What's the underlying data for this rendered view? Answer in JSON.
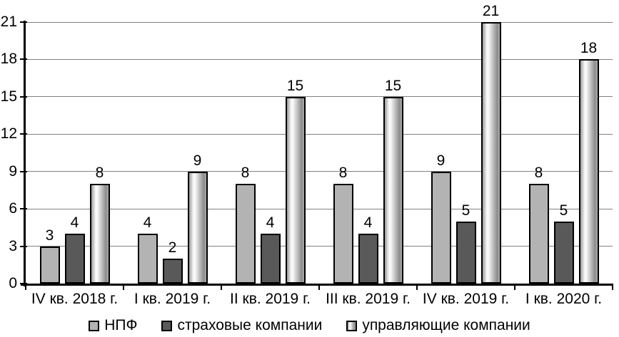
{
  "chart_data": {
    "type": "bar",
    "title": "",
    "categories": [
      "IV кв. 2018 г.",
      "I кв. 2019 г.",
      "II кв. 2019 г.",
      "III кв. 2019 г.",
      "IV кв. 2019 г.",
      "I кв. 2020 г."
    ],
    "series": [
      {
        "name": "НПФ",
        "key": "npf",
        "values": [
          3,
          4,
          8,
          8,
          9,
          8
        ],
        "fill": "#b3b3b3"
      },
      {
        "name": "страховые компании",
        "key": "insurance-companies",
        "values": [
          4,
          2,
          4,
          4,
          5,
          5
        ],
        "fill": "#595959"
      },
      {
        "name": "управляющие компании",
        "key": "management-companies",
        "values": [
          8,
          9,
          15,
          15,
          21,
          18
        ],
        "fill_gradient": [
          {
            "color": "#9a9a9a",
            "pos": "0%"
          },
          {
            "color": "#f9f9f9",
            "pos": "25%"
          },
          {
            "color": "#f9f9f9",
            "pos": "34%"
          },
          {
            "color": "#8c8c8c",
            "pos": "85%"
          },
          {
            "color": "#ababab",
            "pos": "100%"
          }
        ]
      }
    ],
    "y_ticks": [
      0,
      3,
      6,
      9,
      12,
      15,
      18,
      21
    ],
    "ylim": [
      0,
      21
    ],
    "grid": "horizontal",
    "legend_position": "bottom",
    "bar_labels": true
  },
  "colors": {
    "background": "#ffffff",
    "axis": "#000000",
    "gridline": "#808080",
    "text": "#000000"
  }
}
